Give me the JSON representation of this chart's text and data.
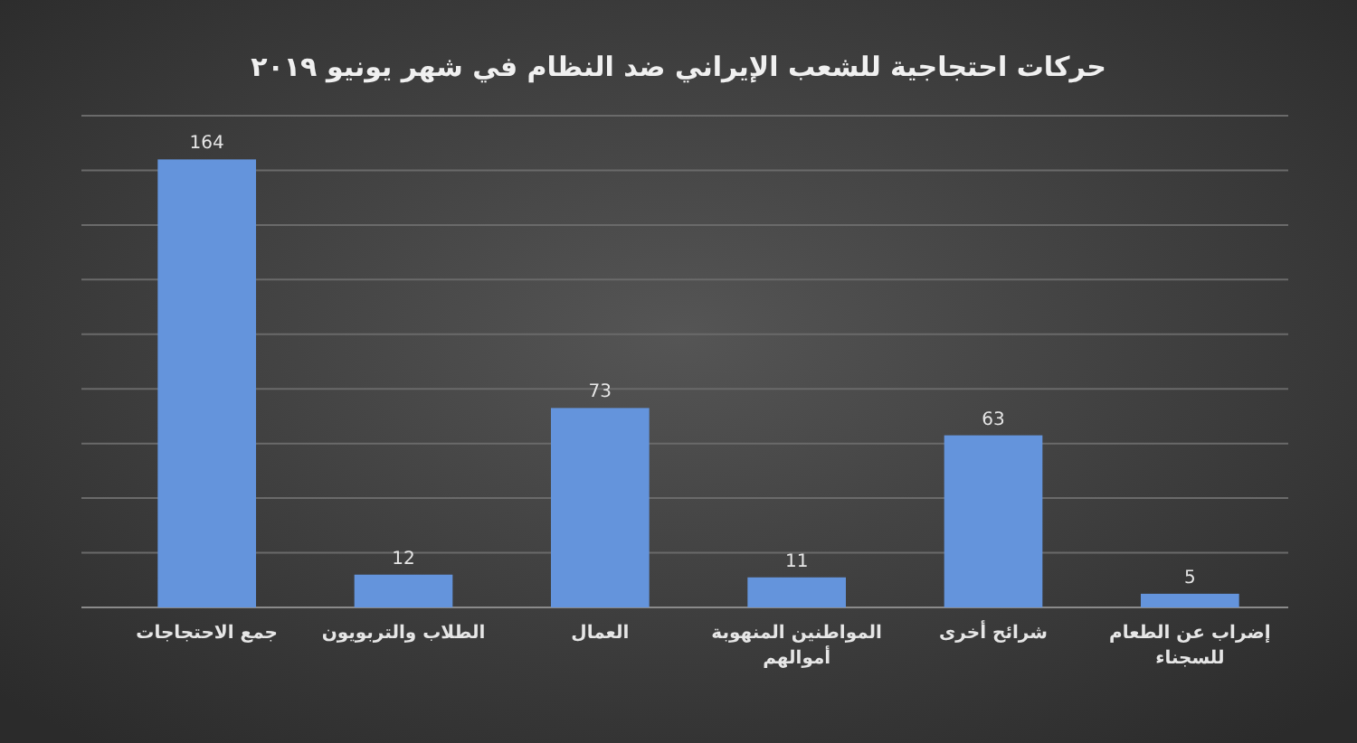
{
  "chart_data": {
    "type": "bar",
    "title": "حركات احتجاجية للشعب الإيراني ضد النظام في شهر يونيو ٢٠١٩",
    "categories": [
      "جمع الاحتجاجات",
      "الطلاب والتربويون",
      "العمال",
      "المواطنين المنهوبة أموالهم",
      "شرائح أخرى",
      "إضراب عن الطعام للسجناء"
    ],
    "values": [
      164,
      12,
      73,
      11,
      63,
      5
    ],
    "color": "#6494dc",
    "data_labels": true,
    "ylim": [
      0,
      180
    ],
    "yticks": [
      {
        "value": 0,
        "label": null
      },
      {
        "value": 20,
        "label": null
      },
      {
        "value": 40,
        "label": null
      },
      {
        "value": 60,
        "label": null
      },
      {
        "value": 80,
        "label": null
      },
      {
        "value": 100,
        "label": null
      },
      {
        "value": 120,
        "label": null
      },
      {
        "value": 140,
        "label": null
      },
      {
        "value": 160,
        "label": null
      },
      {
        "value": 180,
        "label": null
      }
    ],
    "grid": "y"
  }
}
